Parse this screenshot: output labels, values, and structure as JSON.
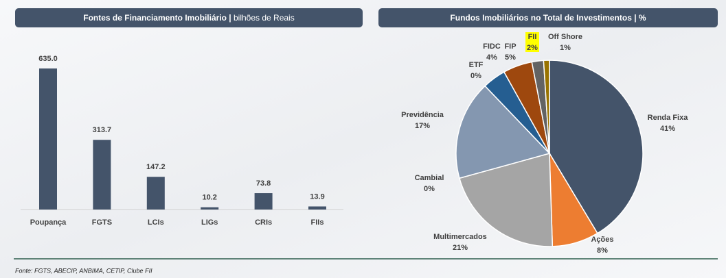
{
  "chart_data": [
    {
      "type": "bar",
      "title": "Fontes de Financiamento Imobiliário |",
      "subtitle": "bilhões de Reais",
      "categories": [
        "Poupança",
        "FGTS",
        "LCIs",
        "LIGs",
        "CRIs",
        "FIIs"
      ],
      "values": [
        635.0,
        313.7,
        147.2,
        10.2,
        73.8,
        13.9
      ],
      "value_labels": [
        "635.0",
        "313.7",
        "147.2",
        "10.2",
        "73.8",
        "13.9"
      ],
      "color": "#44546a"
    },
    {
      "type": "pie",
      "title": "Fundos Imobiliários no Total de Investimentos | %",
      "categories": [
        "Renda Fixa",
        "Ações",
        "Multimercados",
        "Cambial",
        "Previdência",
        "ETF",
        "FIDC",
        "FIP",
        "FII",
        "Off Shore"
      ],
      "values": [
        41,
        8,
        21,
        0,
        17,
        0,
        4,
        5,
        2,
        1
      ],
      "value_labels": [
        "41%",
        "8%",
        "21%",
        "0%",
        "17%",
        "0%",
        "4%",
        "5%",
        "2%",
        "1%"
      ],
      "colors": [
        "#44546a",
        "#ed7d31",
        "#a5a5a5",
        "#ffc000",
        "#8497b0",
        "#a9d18e",
        "#255e91",
        "#9e480e",
        "#636363",
        "#997300"
      ]
    }
  ],
  "source": "Fonte: FGTS, ABECIP, ANBIMA, CETIP, Clube FII"
}
